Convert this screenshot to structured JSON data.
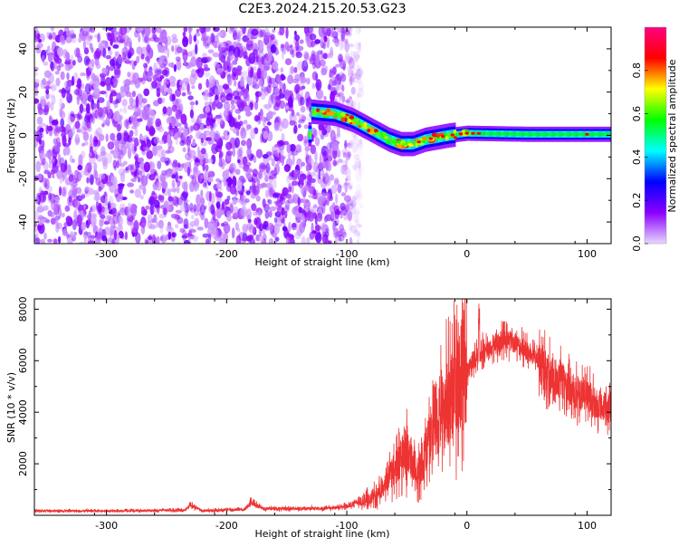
{
  "figure": {
    "title": "C2E3.2024.215.20.53.G23"
  },
  "chart_data": [
    {
      "type": "heatmap",
      "xlabel": "Height of straight line (km)",
      "ylabel": "Frequency (Hz)",
      "xlim": [
        -360,
        120
      ],
      "ylim": [
        -50,
        50
      ],
      "xticks": [
        -300,
        -200,
        -100,
        0,
        100
      ],
      "yticks": [
        -40,
        -20,
        0,
        20,
        40
      ],
      "grid": false,
      "colorbar": {
        "label": "Normalized spectral amplitude",
        "range": [
          0,
          1
        ],
        "ticks": [
          0.0,
          0.2,
          0.4,
          0.6,
          0.8
        ],
        "colormap": "hsv-rainbow",
        "colors": [
          "#e8d8ff",
          "#8a00ff",
          "#0000ff",
          "#00ffff",
          "#00ff00",
          "#ffff00",
          "#ff0000",
          "#ff0080"
        ]
      },
      "signal_track": [
        {
          "x": -130,
          "y": 11
        },
        {
          "x": -110,
          "y": 10
        },
        {
          "x": -95,
          "y": 7
        },
        {
          "x": -85,
          "y": 4
        },
        {
          "x": -75,
          "y": 1
        },
        {
          "x": -65,
          "y": -2
        },
        {
          "x": -55,
          "y": -4
        },
        {
          "x": -45,
          "y": -4
        },
        {
          "x": -35,
          "y": -2
        },
        {
          "x": -25,
          "y": -1
        },
        {
          "x": -15,
          "y": 0
        },
        {
          "x": 0,
          "y": 1
        },
        {
          "x": 50,
          "y": 0.5
        },
        {
          "x": 100,
          "y": 0.5
        },
        {
          "x": 120,
          "y": 0.5
        }
      ]
    },
    {
      "type": "line",
      "xlabel": "Height of straight line (km)",
      "ylabel": "SNR (10 * v/v)",
      "xlim": [
        -360,
        120
      ],
      "ylim": [
        0,
        8400
      ],
      "xticks": [
        -300,
        -200,
        -100,
        0,
        100
      ],
      "yticks": [
        2000,
        4000,
        6000,
        8000
      ],
      "grid": false,
      "series": [
        {
          "color": "#ee3333",
          "envelope": [
            {
              "x": -360,
              "y": 180
            },
            {
              "x": -300,
              "y": 170
            },
            {
              "x": -235,
              "y": 200
            },
            {
              "x": -230,
              "y": 380
            },
            {
              "x": -220,
              "y": 180
            },
            {
              "x": -185,
              "y": 230
            },
            {
              "x": -180,
              "y": 500
            },
            {
              "x": -170,
              "y": 260
            },
            {
              "x": -120,
              "y": 260
            },
            {
              "x": -100,
              "y": 350
            },
            {
              "x": -90,
              "y": 500
            },
            {
              "x": -80,
              "y": 700
            },
            {
              "x": -70,
              "y": 1000
            },
            {
              "x": -60,
              "y": 1800
            },
            {
              "x": -50,
              "y": 2600
            },
            {
              "x": -40,
              "y": 1700
            },
            {
              "x": -30,
              "y": 3000
            },
            {
              "x": -20,
              "y": 4200
            },
            {
              "x": -10,
              "y": 4800
            },
            {
              "x": 0,
              "y": 5600
            },
            {
              "x": 10,
              "y": 6300
            },
            {
              "x": 20,
              "y": 6500
            },
            {
              "x": 30,
              "y": 6800
            },
            {
              "x": 40,
              "y": 6700
            },
            {
              "x": 50,
              "y": 6400
            },
            {
              "x": 60,
              "y": 5900
            },
            {
              "x": 70,
              "y": 5400
            },
            {
              "x": 80,
              "y": 5200
            },
            {
              "x": 90,
              "y": 4800
            },
            {
              "x": 100,
              "y": 4600
            },
            {
              "x": 110,
              "y": 4300
            },
            {
              "x": 120,
              "y": 4100
            }
          ],
          "peak": {
            "x": 10,
            "y": 8300
          }
        }
      ]
    }
  ]
}
